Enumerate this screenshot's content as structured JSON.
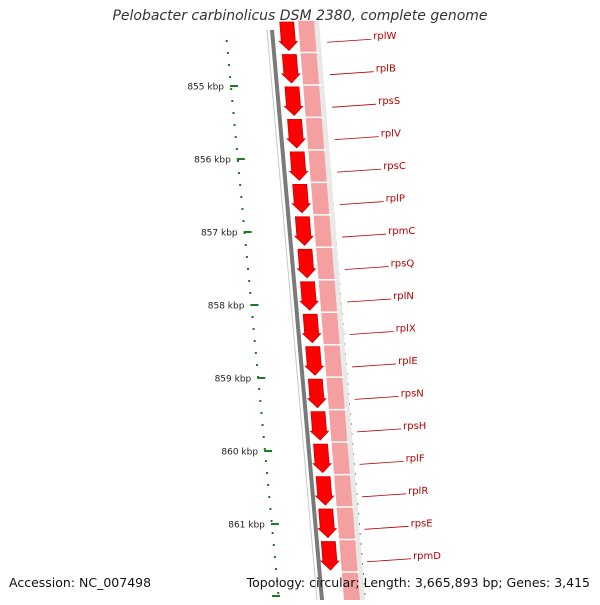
{
  "title": "Pelobacter carbinolicus DSM 2380, complete genome",
  "footer": {
    "accession": "Accession: NC_007498",
    "topology": "Topology: circular; Length: 3,665,893 bp; Genes: 3,415"
  },
  "colors": {
    "gene_fill": "#ff0000",
    "gene_dark": "#d20000",
    "cds_track": "#f4a0a0",
    "backbone": "#7a7a7a",
    "gc_marks": "#1e7a1e",
    "label_text": "#b80000",
    "accent_green": "#a6ea3c"
  },
  "ruler": {
    "unit": "kbp",
    "ticks": [
      {
        "label": "855 kbp",
        "value": 855
      },
      {
        "label": "856 kbp",
        "value": 856
      },
      {
        "label": "857 kbp",
        "value": 857
      },
      {
        "label": "858 kbp",
        "value": 858
      },
      {
        "label": "859 kbp",
        "value": 859
      },
      {
        "label": "860 kbp",
        "value": 860
      },
      {
        "label": "861 kbp",
        "value": 861
      }
    ]
  },
  "genes": [
    {
      "name": "rplW"
    },
    {
      "name": "rplB"
    },
    {
      "name": "rpsS"
    },
    {
      "name": "rplV"
    },
    {
      "name": "rpsC"
    },
    {
      "name": "rplP"
    },
    {
      "name": "rpmC"
    },
    {
      "name": "rpsQ"
    },
    {
      "name": "rplN"
    },
    {
      "name": "rplX"
    },
    {
      "name": "rplE"
    },
    {
      "name": "rpsN"
    },
    {
      "name": "rpsH"
    },
    {
      "name": "rplF"
    },
    {
      "name": "rplR"
    },
    {
      "name": "rpsE"
    },
    {
      "name": "rpmD"
    }
  ]
}
